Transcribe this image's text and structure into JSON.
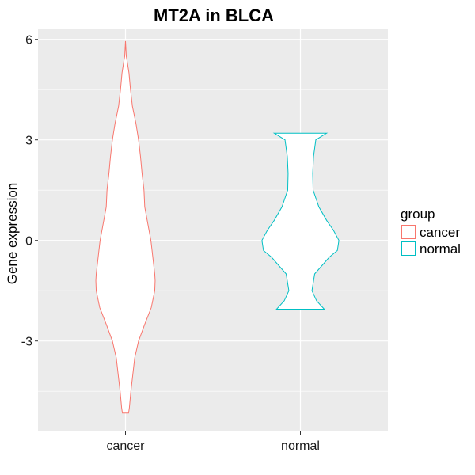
{
  "chart_data": {
    "type": "violin",
    "title": "MT2A in BLCA",
    "xlabel": "",
    "ylabel": "Gene expression",
    "categories": [
      "cancer",
      "normal"
    ],
    "y_ticks": [
      -3,
      0,
      3,
      6
    ],
    "y_tick_labels": [
      "-3",
      "0",
      "3",
      "6"
    ],
    "ylim": [
      -5.7,
      6.3
    ],
    "grid": true,
    "legend": {
      "title": "group",
      "position": "right",
      "items": [
        {
          "label": "cancer",
          "color": "#F8766D"
        },
        {
          "label": "normal",
          "color": "#00BFC4"
        }
      ]
    },
    "series": [
      {
        "name": "cancer",
        "color": "#F8766D",
        "profile": [
          [
            -5.15,
            0.08
          ],
          [
            -5.0,
            0.1
          ],
          [
            -4.5,
            0.14
          ],
          [
            -4.0,
            0.19
          ],
          [
            -3.5,
            0.24
          ],
          [
            -3.0,
            0.34
          ],
          [
            -2.5,
            0.5
          ],
          [
            -2.0,
            0.67
          ],
          [
            -1.5,
            0.76
          ],
          [
            -1.2,
            0.77
          ],
          [
            -1.0,
            0.76
          ],
          [
            -0.5,
            0.71
          ],
          [
            0.0,
            0.66
          ],
          [
            0.5,
            0.58
          ],
          [
            1.0,
            0.5
          ],
          [
            1.5,
            0.48
          ],
          [
            2.0,
            0.43
          ],
          [
            2.5,
            0.39
          ],
          [
            3.0,
            0.34
          ],
          [
            3.5,
            0.27
          ],
          [
            4.0,
            0.18
          ],
          [
            4.5,
            0.13
          ],
          [
            5.0,
            0.09
          ],
          [
            5.3,
            0.05
          ],
          [
            5.5,
            0.02
          ],
          [
            5.95,
            0.0
          ]
        ]
      },
      {
        "name": "normal",
        "color": "#00BFC4",
        "profile": [
          [
            -2.05,
            0.62
          ],
          [
            -1.8,
            0.42
          ],
          [
            -1.5,
            0.3
          ],
          [
            -1.0,
            0.37
          ],
          [
            -0.5,
            0.75
          ],
          [
            -0.3,
            0.96
          ],
          [
            0.0,
            1.0
          ],
          [
            0.3,
            0.86
          ],
          [
            0.6,
            0.68
          ],
          [
            1.0,
            0.48
          ],
          [
            1.5,
            0.33
          ],
          [
            2.0,
            0.32
          ],
          [
            2.5,
            0.34
          ],
          [
            3.0,
            0.4
          ],
          [
            3.2,
            0.68
          ]
        ]
      }
    ]
  }
}
